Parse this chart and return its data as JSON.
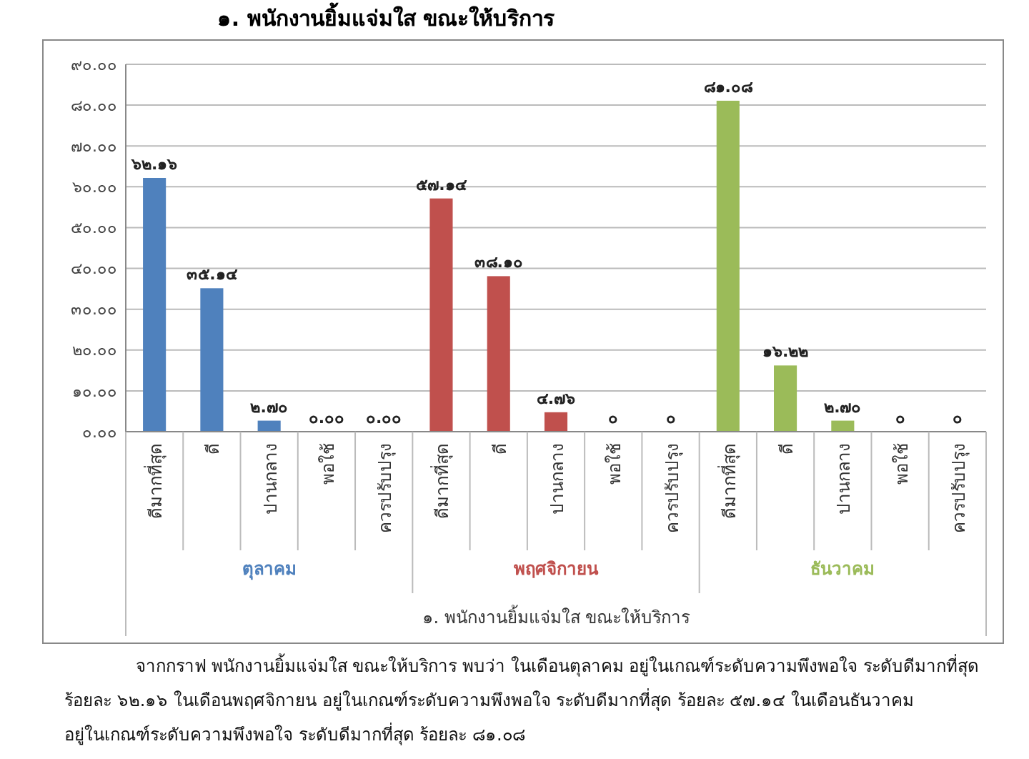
{
  "chart_data": {
    "type": "bar",
    "title": "๑. พนักงานยิ้มแจ่มใส ขณะให้บริการ",
    "xlabel": "๑. พนักงานยิ้มแจ่มใส ขณะให้บริการ",
    "categories": [
      "ดีมากที่สุด",
      "ดี",
      "ปานกลาง",
      "พอใช้",
      "ควรปรับปรุง",
      "ดีมากที่สุด",
      "ดี",
      "ปานกลาง",
      "พอใช้",
      "ควรปรับปรุง",
      "ดีมากที่สุด",
      "ดี",
      "ปานกลาง",
      "พอใช้",
      "ควรปรับปรุง"
    ],
    "series": [
      {
        "name": "ตุลาคม",
        "color": "#4f81bd",
        "values": [
          62.16,
          35.14,
          2.7,
          0,
          0,
          null,
          null,
          null,
          null,
          null,
          null,
          null,
          null,
          null,
          null
        ],
        "value_labels": [
          "๖๒.๑๖",
          "๓๕.๑๔",
          "๒.๗๐",
          "๐.๐๐",
          "๐.๐๐",
          null,
          null,
          null,
          null,
          null,
          null,
          null,
          null,
          null,
          null
        ]
      },
      {
        "name": "พฤศจิกายน",
        "color": "#c0504d",
        "values": [
          null,
          null,
          null,
          null,
          null,
          57.14,
          38.1,
          4.76,
          0,
          0,
          null,
          null,
          null,
          null,
          null
        ],
        "value_labels": [
          null,
          null,
          null,
          null,
          null,
          "๕๗.๑๔",
          "๓๘.๑๐",
          "๔.๗๖",
          "๐",
          "๐",
          null,
          null,
          null,
          null,
          null
        ]
      },
      {
        "name": "ธันวาคม",
        "color": "#9bbb59",
        "values": [
          null,
          null,
          null,
          null,
          null,
          null,
          null,
          null,
          null,
          null,
          81.08,
          16.22,
          2.7,
          0,
          0
        ],
        "value_labels": [
          null,
          null,
          null,
          null,
          null,
          null,
          null,
          null,
          null,
          null,
          "๘๑.๐๘",
          "๑๖.๒๒",
          "๒.๗๐",
          "๐",
          "๐"
        ]
      }
    ],
    "ylim": [
      0,
      90
    ],
    "yticks": [
      {
        "value": 0,
        "label": "๐.๐๐"
      },
      {
        "value": 10,
        "label": "๑๐.๐๐"
      },
      {
        "value": 20,
        "label": "๒๐.๐๐"
      },
      {
        "value": 30,
        "label": "๓๐.๐๐"
      },
      {
        "value": 40,
        "label": "๔๐.๐๐"
      },
      {
        "value": 50,
        "label": "๕๐.๐๐"
      },
      {
        "value": 60,
        "label": "๖๐.๐๐"
      },
      {
        "value": 70,
        "label": "๗๐.๐๐"
      },
      {
        "value": 80,
        "label": "๘๐.๐๐"
      },
      {
        "value": 90,
        "label": "๙๐.๐๐"
      }
    ],
    "grid": "y",
    "annotations": [
      "จากกราฟ พนักงานยิ้มแจ่มใส ขณะให้บริการ พบว่า ในเดือนตุลาคม อยู่ในเกณฑ์ระดับความพึงพอใจ ระดับดีมากที่สุด ร้อยละ ๖๒.๑๖ ในเดือนพฤศจิกายน อยู่ในเกณฑ์ระดับความพึงพอใจ ระดับดีมากที่สุด ร้อยละ ๕๗.๑๔ ในเดือนธันวาคม อยู่ในเกณฑ์ระดับความพึงพอใจ ระดับดีมากที่สุด ร้อยละ ๘๑.๐๘"
    ]
  }
}
